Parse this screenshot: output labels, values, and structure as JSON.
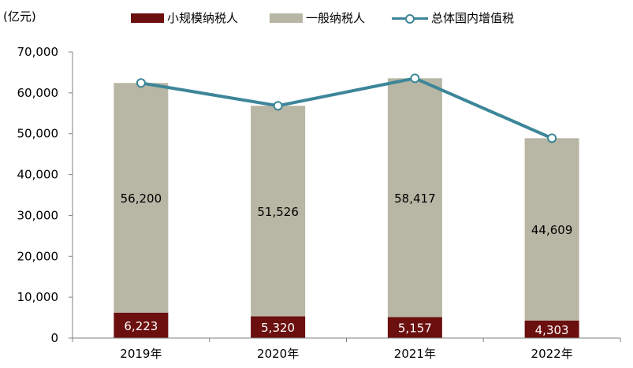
{
  "unit_label": "(亿元)",
  "legend": {
    "small": "小规模纳税人",
    "general": "一般纳税人",
    "total": "总体国内增值税"
  },
  "colors": {
    "small": "#6b0f0f",
    "general": "#b8b6a4",
    "total": "#3d8699",
    "axis": "#808080"
  },
  "chart_data": {
    "type": "bar",
    "stacked": true,
    "categories": [
      "2019年",
      "2020年",
      "2021年",
      "2022年"
    ],
    "series": [
      {
        "name": "小规模纳税人",
        "type": "bar",
        "values": [
          6223,
          5320,
          5157,
          4303
        ],
        "labels": [
          "6,223",
          "5,320",
          "5,157",
          "4,303"
        ]
      },
      {
        "name": "一般纳税人",
        "type": "bar",
        "values": [
          56200,
          51526,
          58417,
          44609
        ],
        "labels": [
          "56,200",
          "51,526",
          "58,417",
          "44,609"
        ]
      },
      {
        "name": "总体国内增值税",
        "type": "line",
        "values": [
          62423,
          56846,
          63574,
          48912
        ]
      }
    ],
    "ylim": [
      0,
      70000
    ],
    "yticks": [
      0,
      10000,
      20000,
      30000,
      40000,
      50000,
      60000,
      70000
    ],
    "ytick_labels": [
      "0",
      "10,000",
      "20,000",
      "30,000",
      "40,000",
      "50,000",
      "60,000",
      "70,000"
    ],
    "ylabel": "(亿元)",
    "xlabel": "",
    "grid": false,
    "legend_position": "top"
  }
}
